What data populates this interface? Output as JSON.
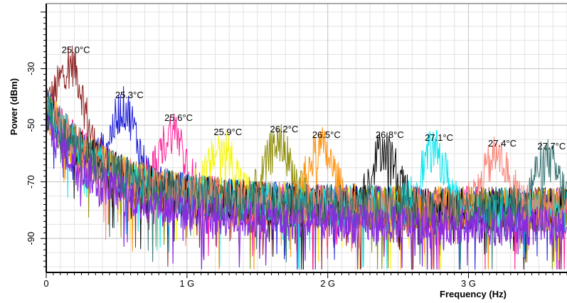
{
  "chart_data": {
    "type": "line",
    "xlabel": "Frequency (Hz)",
    "ylabel": "Power (dBm)",
    "xlim": [
      0,
      3.7
    ],
    "ylim": [
      -102,
      -7
    ],
    "x_unit": "GHz",
    "x_ticks": [
      {
        "value": 0,
        "label": "0"
      },
      {
        "value": 1,
        "label": "1 G"
      },
      {
        "value": 2,
        "label": "2 G"
      },
      {
        "value": 3,
        "label": "3 G"
      }
    ],
    "y_ticks": [
      {
        "value": -30,
        "label": "-30"
      },
      {
        "value": -50,
        "label": "-50"
      },
      {
        "value": -70,
        "label": "-70"
      },
      {
        "value": -90,
        "label": "-90"
      }
    ],
    "grid": true,
    "series": [
      {
        "name": "25.0°C",
        "color": "#8b1a1a",
        "peak_x": 0.17,
        "peak_y": -28
      },
      {
        "name": "25.3°C",
        "color": "#1010d8",
        "peak_x": 0.55,
        "peak_y": -44
      },
      {
        "name": "25.6°C",
        "color": "#ff1493",
        "peak_x": 0.9,
        "peak_y": -52
      },
      {
        "name": "25.9°C",
        "color": "#f5f500",
        "peak_x": 1.25,
        "peak_y": -57
      },
      {
        "name": "26.2°C",
        "color": "#8b8b00",
        "peak_x": 1.65,
        "peak_y": -56
      },
      {
        "name": "26.5°C",
        "color": "#ff8c00",
        "peak_x": 1.95,
        "peak_y": -58
      },
      {
        "name": "26.8°C",
        "color": "#000000",
        "peak_x": 2.4,
        "peak_y": -58
      },
      {
        "name": "27.1°C",
        "color": "#00e5ee",
        "peak_x": 2.75,
        "peak_y": -59
      },
      {
        "name": "27.4°C",
        "color": "#fa8072",
        "peak_x": 3.2,
        "peak_y": -61
      },
      {
        "name": "27.7°C",
        "color": "#2f6f6f",
        "peak_x": 3.55,
        "peak_y": -62
      }
    ],
    "baseline_color": "#8a2be2"
  }
}
